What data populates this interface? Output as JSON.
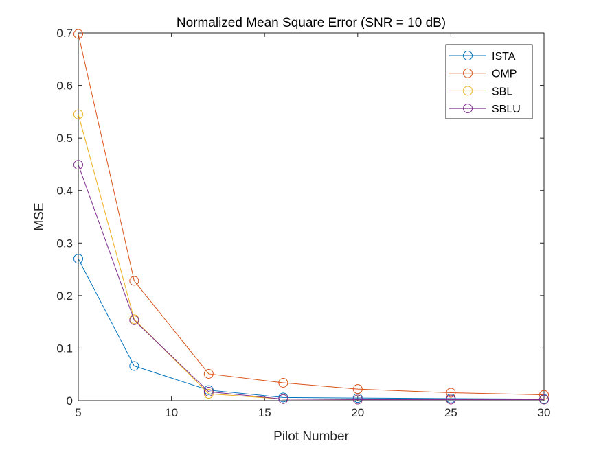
{
  "chart_data": {
    "type": "line",
    "title": "Normalized Mean Square Error (SNR = 10 dB)",
    "xlabel": "Pilot Number",
    "ylabel": "MSE",
    "xlim": [
      5,
      30
    ],
    "ylim": [
      0,
      0.7
    ],
    "xticks": [
      5,
      10,
      15,
      20,
      25,
      30
    ],
    "xtick_labels": [
      "5",
      "10",
      "15",
      "20",
      "25",
      "30"
    ],
    "yticks": [
      0,
      0.1,
      0.2,
      0.3,
      0.4,
      0.5,
      0.6,
      0.7
    ],
    "ytick_labels": [
      "0",
      "0.1",
      "0.2",
      "0.3",
      "0.4",
      "0.5",
      "0.6",
      "0.7"
    ],
    "grid": false,
    "legend_position": "top-right",
    "marker": "circle",
    "x": [
      5,
      8,
      12,
      16,
      20,
      25,
      30
    ],
    "series": [
      {
        "name": "ISTA",
        "color": "#0072BD",
        "values": [
          0.27,
          0.066,
          0.02,
          0.006,
          0.005,
          0.004,
          0.003
        ]
      },
      {
        "name": "OMP",
        "color": "#D95319",
        "values": [
          0.698,
          0.228,
          0.051,
          0.034,
          0.022,
          0.015,
          0.011
        ]
      },
      {
        "name": "SBL",
        "color": "#EDB120",
        "values": [
          0.545,
          0.155,
          0.013,
          0.003,
          0.002,
          0.002,
          0.002
        ]
      },
      {
        "name": "SBLU",
        "color": "#7E2F8E",
        "values": [
          0.449,
          0.153,
          0.017,
          0.003,
          0.002,
          0.002,
          0.002
        ]
      }
    ]
  }
}
